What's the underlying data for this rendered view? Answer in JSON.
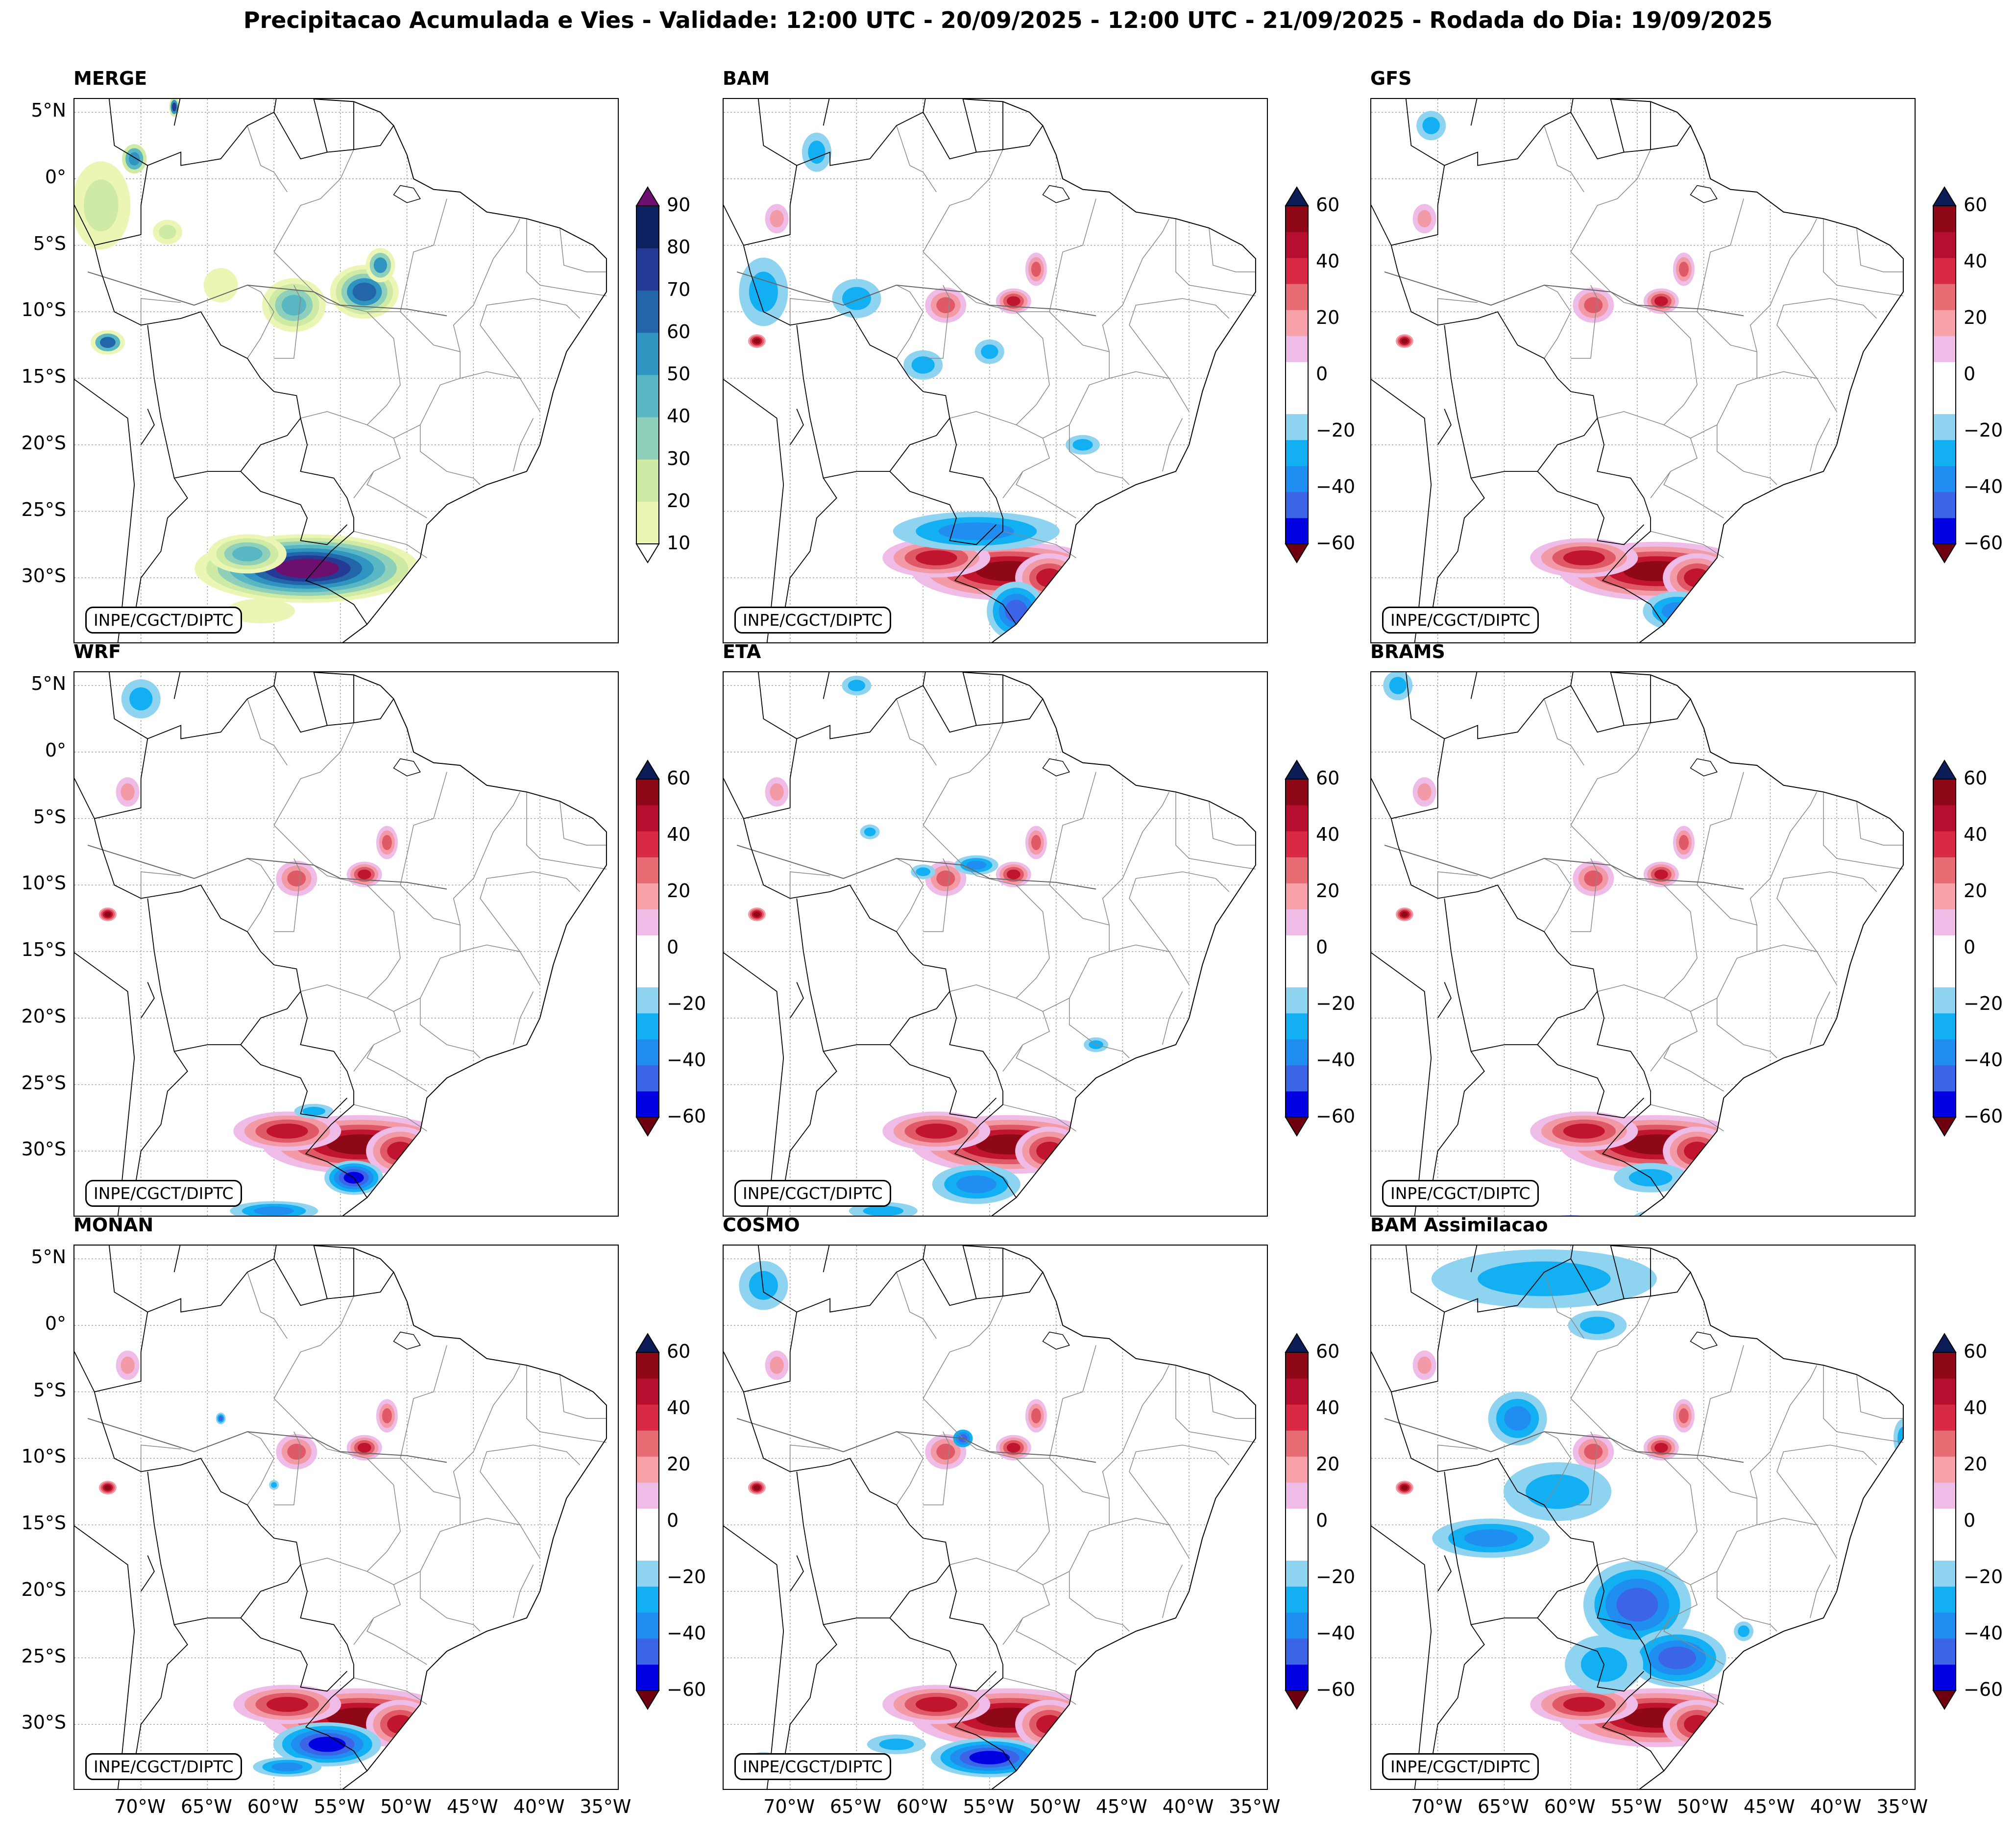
{
  "figure": {
    "title": "Precipitacao Acumulada e Vies - Validade: 12:00 UTC - 20/09/2025 - 12:00 UTC - 21/09/2025 - Rodada do Dia: 19/09/2025"
  },
  "credit": "INPE/CGCT/DIPTC",
  "lat_labels": [
    "5°N",
    "0°",
    "5°S",
    "10°S",
    "15°S",
    "20°S",
    "25°S",
    "30°S"
  ],
  "lon_labels": [
    "70°W",
    "65°W",
    "60°W",
    "55°W",
    "50°W",
    "45°W",
    "40°W",
    "35°W"
  ],
  "colorbars": {
    "precip": {
      "ticks": [
        "90",
        "80",
        "70",
        "60",
        "50",
        "40",
        "30",
        "20",
        "10"
      ],
      "colors": [
        "#ecf6b4",
        "#cfeaa5",
        "#8fd0bb",
        "#58b7c2",
        "#2f94c0",
        "#2265a8",
        "#253a94",
        "#0c2260"
      ],
      "over_color": "#6d0f6e",
      "under_color": "#ffffff"
    },
    "bias": {
      "ticks": [
        "60",
        "40",
        "20",
        "0",
        "−20",
        "−40",
        "−60"
      ],
      "colors": [
        "#0000e0",
        "#3c64e6",
        "#1f8ef0",
        "#12b0f2",
        "#8ed3ef",
        "#ffffff",
        "#ffffff",
        "#efbce8",
        "#f7a2a8",
        "#e86c73",
        "#d92a45",
        "#b50e2e",
        "#8e0818"
      ],
      "over_color": "#0c1c56",
      "under_color": "#6e0010"
    }
  },
  "panels": [
    {
      "id": "merge",
      "title": "MERGE",
      "colorbar": "precip"
    },
    {
      "id": "bam",
      "title": "BAM",
      "colorbar": "bias"
    },
    {
      "id": "gfs",
      "title": "GFS",
      "colorbar": "bias"
    },
    {
      "id": "wrf",
      "title": "WRF",
      "colorbar": "bias"
    },
    {
      "id": "eta",
      "title": "ETA",
      "colorbar": "bias"
    },
    {
      "id": "brams",
      "title": "BRAMS",
      "colorbar": "bias"
    },
    {
      "id": "monan",
      "title": "MONAN",
      "colorbar": "bias"
    },
    {
      "id": "cosmo",
      "title": "COSMO",
      "colorbar": "bias"
    },
    {
      "id": "bam_assim",
      "title": "BAM Assimilacao",
      "colorbar": "bias"
    }
  ]
}
